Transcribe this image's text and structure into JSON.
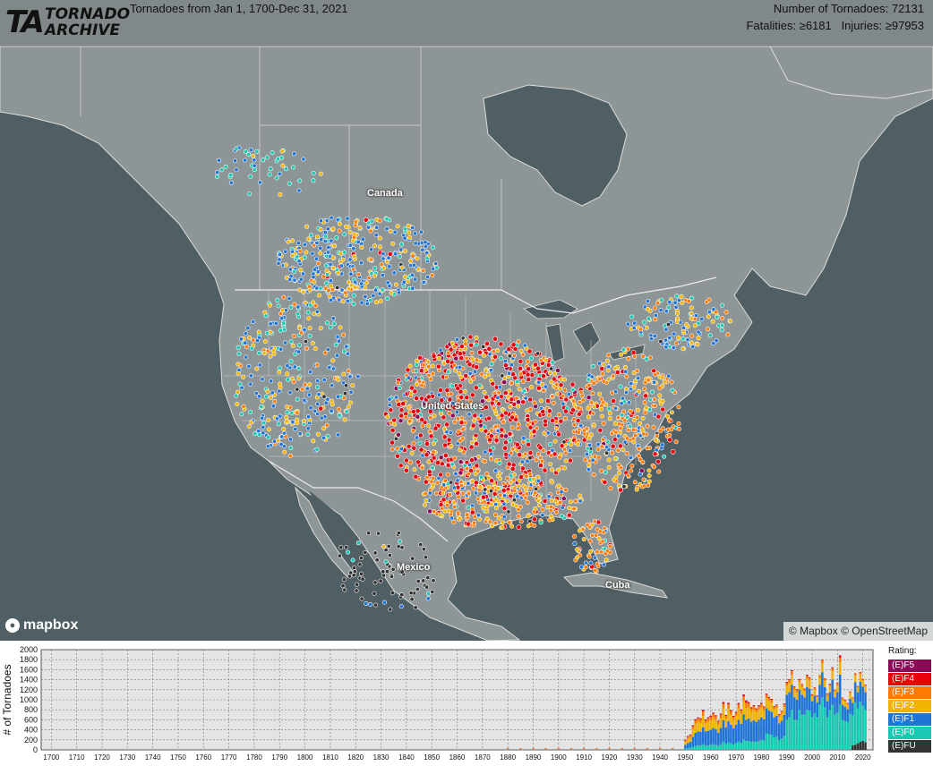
{
  "header": {
    "logo_mark": "TA",
    "logo_line1": "TORNADO",
    "logo_line2": "ARCHIVE",
    "title": "Tornadoes from Jan 1, 1700-Dec 31, 2021",
    "count_text": "Number of Tornadoes: 72131",
    "casualty_text": "Fatalities: ≥6181   Injuries: ≥97953"
  },
  "map": {
    "labels": {
      "canada": "Canada",
      "united_states": "United States",
      "mexico": "Mexico",
      "cuba": "Cuba"
    },
    "mapbox_logo_text": "mapbox",
    "attribution": "© Mapbox © OpenStreetMap",
    "colors": {
      "ocean": "#4f5f63",
      "land": "#8e9596",
      "border": "#e6e6e6"
    }
  },
  "legend": {
    "title": "Rating:",
    "items": [
      {
        "label": "(E)F5",
        "color": "#8b0a57"
      },
      {
        "label": "(E)F4",
        "color": "#e8000b"
      },
      {
        "label": "(E)F3",
        "color": "#ff7a00"
      },
      {
        "label": "(E)F2",
        "color": "#f0b400"
      },
      {
        "label": "(E)F1",
        "color": "#1f74d6"
      },
      {
        "label": "(E)F0",
        "color": "#19c8b0"
      },
      {
        "label": "(E)FU",
        "color": "#333333"
      }
    ]
  },
  "chart_data": {
    "type": "bar",
    "stacked": true,
    "ylabel": "# of Tornadoes",
    "ylim": [
      0,
      2000
    ],
    "yticks": [
      0,
      200,
      400,
      600,
      800,
      1000,
      1200,
      1400,
      1600,
      1800,
      2000
    ],
    "xticks": [
      1700,
      1710,
      1720,
      1730,
      1740,
      1750,
      1760,
      1770,
      1780,
      1790,
      1800,
      1810,
      1820,
      1830,
      1840,
      1850,
      1860,
      1870,
      1880,
      1890,
      1900,
      1910,
      1920,
      1930,
      1940,
      1950,
      1960,
      1970,
      1980,
      1990,
      2000,
      2010,
      2020
    ],
    "xlim": [
      1696,
      2024
    ],
    "grid": true,
    "series_order": [
      "(E)FU",
      "(E)F0",
      "(E)F1",
      "(E)F2",
      "(E)F3",
      "(E)F4",
      "(E)F5"
    ],
    "bars": [
      {
        "year": 1880,
        "values": [
          0,
          0,
          5,
          10,
          10,
          5,
          0
        ]
      },
      {
        "year": 1885,
        "values": [
          0,
          0,
          5,
          10,
          10,
          5,
          0
        ]
      },
      {
        "year": 1890,
        "values": [
          0,
          0,
          5,
          10,
          10,
          5,
          0
        ]
      },
      {
        "year": 1895,
        "values": [
          0,
          0,
          5,
          10,
          10,
          5,
          0
        ]
      },
      {
        "year": 1900,
        "values": [
          0,
          0,
          5,
          10,
          10,
          5,
          0
        ]
      },
      {
        "year": 1905,
        "values": [
          0,
          0,
          5,
          10,
          10,
          5,
          0
        ]
      },
      {
        "year": 1910,
        "values": [
          0,
          0,
          5,
          10,
          10,
          5,
          0
        ]
      },
      {
        "year": 1915,
        "values": [
          0,
          0,
          5,
          10,
          10,
          5,
          0
        ]
      },
      {
        "year": 1920,
        "values": [
          0,
          0,
          5,
          10,
          10,
          5,
          0
        ]
      },
      {
        "year": 1925,
        "values": [
          0,
          0,
          5,
          10,
          10,
          5,
          0
        ]
      },
      {
        "year": 1930,
        "values": [
          0,
          0,
          5,
          10,
          10,
          5,
          0
        ]
      },
      {
        "year": 1935,
        "values": [
          0,
          0,
          5,
          10,
          10,
          5,
          0
        ]
      },
      {
        "year": 1940,
        "values": [
          0,
          0,
          5,
          10,
          10,
          5,
          0
        ]
      },
      {
        "year": 1945,
        "values": [
          0,
          0,
          5,
          10,
          10,
          5,
          0
        ]
      },
      {
        "year": 1950,
        "values": [
          0,
          20,
          80,
          60,
          30,
          10,
          1
        ]
      },
      {
        "year": 1951,
        "values": [
          0,
          30,
          110,
          80,
          40,
          12,
          1
        ]
      },
      {
        "year": 1952,
        "values": [
          0,
          40,
          120,
          90,
          40,
          15,
          2
        ]
      },
      {
        "year": 1953,
        "values": [
          0,
          60,
          200,
          150,
          60,
          20,
          3
        ]
      },
      {
        "year": 1954,
        "values": [
          0,
          80,
          260,
          180,
          70,
          18,
          2
        ]
      },
      {
        "year": 1955,
        "values": [
          0,
          90,
          280,
          190,
          70,
          15,
          2
        ]
      },
      {
        "year": 1956,
        "values": [
          0,
          90,
          270,
          180,
          70,
          18,
          2
        ]
      },
      {
        "year": 1957,
        "values": [
          0,
          110,
          340,
          230,
          90,
          25,
          3
        ]
      },
      {
        "year": 1958,
        "values": [
          0,
          90,
          280,
          160,
          60,
          15,
          2
        ]
      },
      {
        "year": 1959,
        "values": [
          0,
          90,
          290,
          180,
          70,
          18,
          2
        ]
      },
      {
        "year": 1960,
        "values": [
          0,
          100,
          300,
          190,
          70,
          18,
          2
        ]
      },
      {
        "year": 1961,
        "values": [
          0,
          110,
          330,
          200,
          80,
          20,
          2
        ]
      },
      {
        "year": 1962,
        "values": [
          0,
          100,
          310,
          190,
          70,
          18,
          2
        ]
      },
      {
        "year": 1963,
        "values": [
          0,
          90,
          250,
          160,
          60,
          15,
          2
        ]
      },
      {
        "year": 1964,
        "values": [
          0,
          110,
          330,
          190,
          70,
          20,
          2
        ]
      },
      {
        "year": 1965,
        "values": [
          0,
          170,
          420,
          240,
          90,
          30,
          4
        ]
      },
      {
        "year": 1966,
        "values": [
          0,
          120,
          330,
          170,
          60,
          15,
          2
        ]
      },
      {
        "year": 1967,
        "values": [
          0,
          150,
          420,
          250,
          90,
          25,
          3
        ]
      },
      {
        "year": 1968,
        "values": [
          0,
          130,
          370,
          200,
          70,
          20,
          2
        ]
      },
      {
        "year": 1969,
        "values": [
          0,
          110,
          320,
          170,
          60,
          15,
          2
        ]
      },
      {
        "year": 1970,
        "values": [
          0,
          140,
          360,
          180,
          60,
          15,
          2
        ]
      },
      {
        "year": 1971,
        "values": [
          0,
          170,
          430,
          230,
          80,
          20,
          3
        ]
      },
      {
        "year": 1972,
        "values": [
          0,
          140,
          380,
          200,
          70,
          15,
          2
        ]
      },
      {
        "year": 1973,
        "values": [
          0,
          210,
          500,
          260,
          100,
          30,
          3
        ]
      },
      {
        "year": 1974,
        "values": [
          0,
          180,
          420,
          240,
          100,
          40,
          7
        ]
      },
      {
        "year": 1975,
        "values": [
          0,
          180,
          450,
          220,
          80,
          20,
          2
        ]
      },
      {
        "year": 1976,
        "values": [
          0,
          160,
          400,
          200,
          70,
          18,
          2
        ]
      },
      {
        "year": 1977,
        "values": [
          0,
          170,
          420,
          210,
          70,
          18,
          2
        ]
      },
      {
        "year": 1978,
        "values": [
          0,
          160,
          400,
          190,
          60,
          15,
          2
        ]
      },
      {
        "year": 1979,
        "values": [
          0,
          180,
          420,
          200,
          70,
          18,
          2
        ]
      },
      {
        "year": 1980,
        "values": [
          0,
          200,
          450,
          200,
          70,
          18,
          2
        ]
      },
      {
        "year": 1981,
        "values": [
          0,
          190,
          420,
          180,
          60,
          15,
          2
        ]
      },
      {
        "year": 1982,
        "values": [
          0,
          330,
          500,
          200,
          70,
          18,
          2
        ]
      },
      {
        "year": 1983,
        "values": [
          0,
          310,
          480,
          190,
          60,
          15,
          2
        ]
      },
      {
        "year": 1984,
        "values": [
          0,
          300,
          460,
          180,
          60,
          15,
          2
        ]
      },
      {
        "year": 1985,
        "values": [
          0,
          250,
          400,
          160,
          50,
          12,
          2
        ]
      },
      {
        "year": 1986,
        "values": [
          0,
          270,
          410,
          160,
          50,
          12,
          2
        ]
      },
      {
        "year": 1987,
        "values": [
          0,
          200,
          330,
          130,
          40,
          10,
          1
        ]
      },
      {
        "year": 1988,
        "values": [
          0,
          230,
          350,
          140,
          45,
          10,
          1
        ]
      },
      {
        "year": 1989,
        "values": [
          0,
          280,
          420,
          160,
          50,
          12,
          2
        ]
      },
      {
        "year": 1990,
        "values": [
          0,
          600,
          500,
          180,
          60,
          15,
          2
        ]
      },
      {
        "year": 1991,
        "values": [
          0,
          650,
          500,
          180,
          60,
          15,
          2
        ]
      },
      {
        "year": 1992,
        "values": [
          0,
          800,
          500,
          200,
          70,
          18,
          2
        ]
      },
      {
        "year": 1993,
        "values": [
          0,
          600,
          450,
          150,
          50,
          12,
          1
        ]
      },
      {
        "year": 1994,
        "values": [
          0,
          600,
          400,
          150,
          50,
          10,
          1
        ]
      },
      {
        "year": 1995,
        "values": [
          0,
          800,
          400,
          150,
          50,
          12,
          1
        ]
      },
      {
        "year": 1996,
        "values": [
          0,
          700,
          400,
          150,
          50,
          12,
          1
        ]
      },
      {
        "year": 1997,
        "values": [
          0,
          700,
          350,
          120,
          40,
          10,
          1
        ]
      },
      {
        "year": 1998,
        "values": [
          0,
          800,
          450,
          170,
          60,
          15,
          2
        ]
      },
      {
        "year": 1999,
        "values": [
          0,
          780,
          440,
          160,
          55,
          12,
          1
        ]
      },
      {
        "year": 2000,
        "values": [
          0,
          650,
          320,
          100,
          30,
          6,
          0
        ]
      },
      {
        "year": 2001,
        "values": [
          0,
          730,
          350,
          120,
          40,
          8,
          0
        ]
      },
      {
        "year": 2002,
        "values": [
          0,
          650,
          300,
          100,
          30,
          8,
          0
        ]
      },
      {
        "year": 2003,
        "values": [
          0,
          900,
          400,
          130,
          50,
          10,
          0
        ]
      },
      {
        "year": 2004,
        "values": [
          0,
          1050,
          500,
          180,
          60,
          12,
          0
        ]
      },
      {
        "year": 2005,
        "values": [
          0,
          850,
          400,
          130,
          40,
          10,
          0
        ]
      },
      {
        "year": 2006,
        "values": [
          0,
          650,
          320,
          110,
          40,
          8,
          0
        ]
      },
      {
        "year": 2007,
        "values": [
          0,
          800,
          350,
          120,
          40,
          10,
          1
        ]
      },
      {
        "year": 2008,
        "values": [
          0,
          900,
          500,
          170,
          60,
          15,
          1
        ]
      },
      {
        "year": 2009,
        "values": [
          0,
          700,
          350,
          110,
          35,
          8,
          0
        ]
      },
      {
        "year": 2010,
        "values": [
          0,
          750,
          400,
          130,
          45,
          12,
          0
        ]
      },
      {
        "year": 2011,
        "values": [
          0,
          900,
          600,
          250,
          90,
          40,
          7
        ]
      },
      {
        "year": 2012,
        "values": [
          0,
          600,
          300,
          100,
          35,
          8,
          0
        ]
      },
      {
        "year": 2013,
        "values": [
          0,
          580,
          280,
          100,
          30,
          8,
          1
        ]
      },
      {
        "year": 2014,
        "values": [
          0,
          550,
          260,
          90,
          30,
          6,
          0
        ]
      },
      {
        "year": 2015,
        "values": [
          0,
          720,
          300,
          110,
          30,
          6,
          0
        ]
      },
      {
        "year": 2016,
        "values": [
          90,
          600,
          250,
          80,
          20,
          4,
          0
        ]
      },
      {
        "year": 2017,
        "values": [
          100,
          850,
          400,
          130,
          40,
          6,
          0
        ]
      },
      {
        "year": 2018,
        "values": [
          130,
          700,
          320,
          100,
          20,
          3,
          0
        ]
      },
      {
        "year": 2019,
        "values": [
          160,
          800,
          400,
          150,
          40,
          5,
          0
        ]
      },
      {
        "year": 2020,
        "values": [
          180,
          700,
          380,
          120,
          30,
          5,
          0
        ]
      },
      {
        "year": 2021,
        "values": [
          150,
          650,
          350,
          120,
          30,
          5,
          0
        ]
      }
    ]
  }
}
